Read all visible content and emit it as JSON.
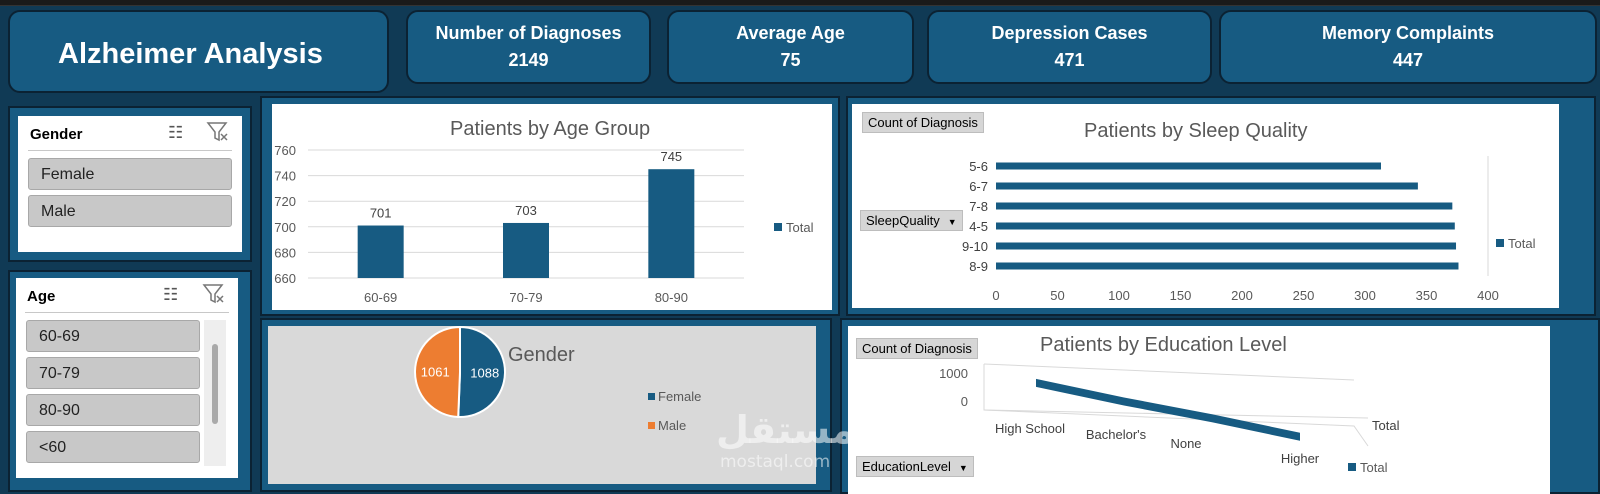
{
  "dashboard": {
    "title": "Alzheimer Analysis",
    "kpis": [
      {
        "label": "Number of Diagnoses",
        "value": "2149"
      },
      {
        "label": "Average Age",
        "value": "75"
      },
      {
        "label": "Depression Cases",
        "value": "471"
      },
      {
        "label": "Memory Complaints",
        "value": "447"
      }
    ]
  },
  "slicers": {
    "gender": {
      "title": "Gender",
      "items": [
        "Female",
        "Male"
      ]
    },
    "age": {
      "title": "Age",
      "items": [
        "60-69",
        "70-79",
        "80-90",
        "<60"
      ]
    }
  },
  "pivot_buttons": {
    "count_of_diagnosis": "Count of Diagnosis",
    "sleep_quality": "SleepQuality",
    "education_level": "EducationLevel"
  },
  "watermark": {
    "arabic": "مستقل",
    "latin": "mostaql.com"
  },
  "colors": {
    "series": "#175b82",
    "male": "#ed7d31",
    "panel": "#175b82"
  },
  "chart_data": [
    {
      "type": "bar",
      "title": "Patients by Age Group",
      "categories": [
        "60-69",
        "70-79",
        "80-90"
      ],
      "series": [
        {
          "name": "Total",
          "values": [
            701,
            703,
            745
          ]
        }
      ],
      "data_labels": [
        "701",
        "703",
        "745"
      ],
      "ylim": [
        660,
        760
      ],
      "yticks": [
        "660",
        "680",
        "700",
        "720",
        "740",
        "760"
      ],
      "grid": true,
      "legend": "right"
    },
    {
      "type": "bar",
      "orientation": "horizontal",
      "title": "Patients by Sleep Quality",
      "categories": [
        "5-6",
        "6-7",
        "7-8",
        "4-5",
        "9-10",
        "8-9"
      ],
      "series": [
        {
          "name": "Total",
          "values": [
            313,
            343,
            371,
            373,
            374,
            376
          ]
        }
      ],
      "xlim": [
        0,
        400
      ],
      "xticks": [
        "0",
        "50",
        "100",
        "150",
        "200",
        "250",
        "300",
        "350",
        "400"
      ],
      "legend": "right"
    },
    {
      "type": "pie",
      "title": "Gender",
      "categories": [
        "Female",
        "Male"
      ],
      "values": [
        1088,
        1061
      ],
      "data_labels": [
        "1088",
        "1061"
      ],
      "legend": "right"
    },
    {
      "type": "line",
      "style": "3d-ribbon",
      "title": "Patients by Education Level",
      "categories": [
        "High School",
        "Bachelor's",
        "None",
        "Higher"
      ],
      "series": [
        {
          "name": "Total",
          "values": [
            850,
            620,
            430,
            200
          ]
        }
      ],
      "yticks": [
        "0",
        "1000"
      ],
      "depth_label": "Total",
      "legend": "bottom-right"
    }
  ]
}
